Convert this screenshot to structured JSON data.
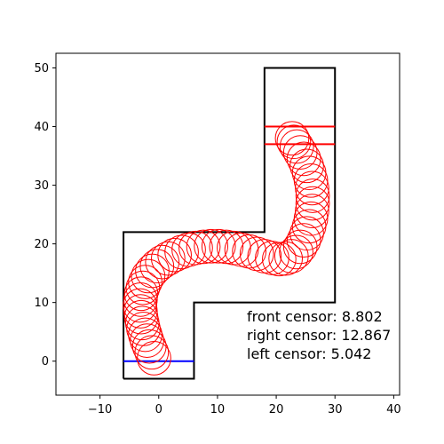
{
  "chart_data": {
    "type": "scatter",
    "xlim": [
      -17.5,
      41
    ],
    "ylim": [
      -5.8,
      52.5
    ],
    "xticks": [
      -10,
      0,
      10,
      20,
      30,
      40
    ],
    "yticks": [
      0,
      10,
      20,
      30,
      40,
      50
    ],
    "grid": false,
    "track": {
      "color": "#000000",
      "points": [
        [
          -6,
          -3
        ],
        [
          6,
          -3
        ],
        [
          6,
          10
        ],
        [
          30,
          10
        ],
        [
          30,
          50
        ],
        [
          18,
          50
        ],
        [
          18,
          22
        ],
        [
          -6,
          22
        ],
        [
          -6,
          -3
        ]
      ]
    },
    "start_line": {
      "color": "#0000ff",
      "x": [
        -6,
        6
      ],
      "y": 0
    },
    "finish_lines": {
      "color": "#ff0000",
      "x": [
        18,
        30
      ],
      "y": [
        40,
        37
      ]
    },
    "trajectory": {
      "color": "#ff0000",
      "radius": 2.85,
      "points": [
        [
          -0.8,
          0.5
        ],
        [
          -1.2,
          1.5
        ],
        [
          -1.6,
          2.5
        ],
        [
          -2.0,
          3.5
        ],
        [
          -2.3,
          4.5
        ],
        [
          -2.6,
          5.5
        ],
        [
          -2.8,
          6.5
        ],
        [
          -3.0,
          7.5
        ],
        [
          -3.1,
          8.5
        ],
        [
          -3.2,
          9.5
        ],
        [
          -3.1,
          10.5
        ],
        [
          -3.0,
          11.5
        ],
        [
          -2.7,
          12.5
        ],
        [
          -2.3,
          13.5
        ],
        [
          -1.8,
          14.5
        ],
        [
          -1.1,
          15.4
        ],
        [
          -0.3,
          16.2
        ],
        [
          0.6,
          16.9
        ],
        [
          1.6,
          17.5
        ],
        [
          2.7,
          18.1
        ],
        [
          3.9,
          18.6
        ],
        [
          5.1,
          19.0
        ],
        [
          6.3,
          19.3
        ],
        [
          7.6,
          19.5
        ],
        [
          8.9,
          19.6
        ],
        [
          10.2,
          19.6
        ],
        [
          11.5,
          19.5
        ],
        [
          12.8,
          19.3
        ],
        [
          14.1,
          19.0
        ],
        [
          15.4,
          18.7
        ],
        [
          16.7,
          18.3
        ],
        [
          18.0,
          17.9
        ],
        [
          19.3,
          17.6
        ],
        [
          20.5,
          17.4
        ],
        [
          21.6,
          17.5
        ],
        [
          22.6,
          17.9
        ],
        [
          23.4,
          18.6
        ],
        [
          24.1,
          19.5
        ],
        [
          24.7,
          20.6
        ],
        [
          25.2,
          21.8
        ],
        [
          25.6,
          23.0
        ],
        [
          25.9,
          24.3
        ],
        [
          26.1,
          25.6
        ],
        [
          26.2,
          26.9
        ],
        [
          26.2,
          28.2
        ],
        [
          26.1,
          29.5
        ],
        [
          25.9,
          30.8
        ],
        [
          25.6,
          32.1
        ],
        [
          25.2,
          33.3
        ],
        [
          24.7,
          34.5
        ],
        [
          24.1,
          35.6
        ],
        [
          23.5,
          36.6
        ],
        [
          23.0,
          37.4
        ],
        [
          22.7,
          38.0
        ]
      ]
    },
    "annotations": [
      "front censor: 8.802",
      "right censor: 12.867",
      "left censor: 5.042"
    ]
  }
}
